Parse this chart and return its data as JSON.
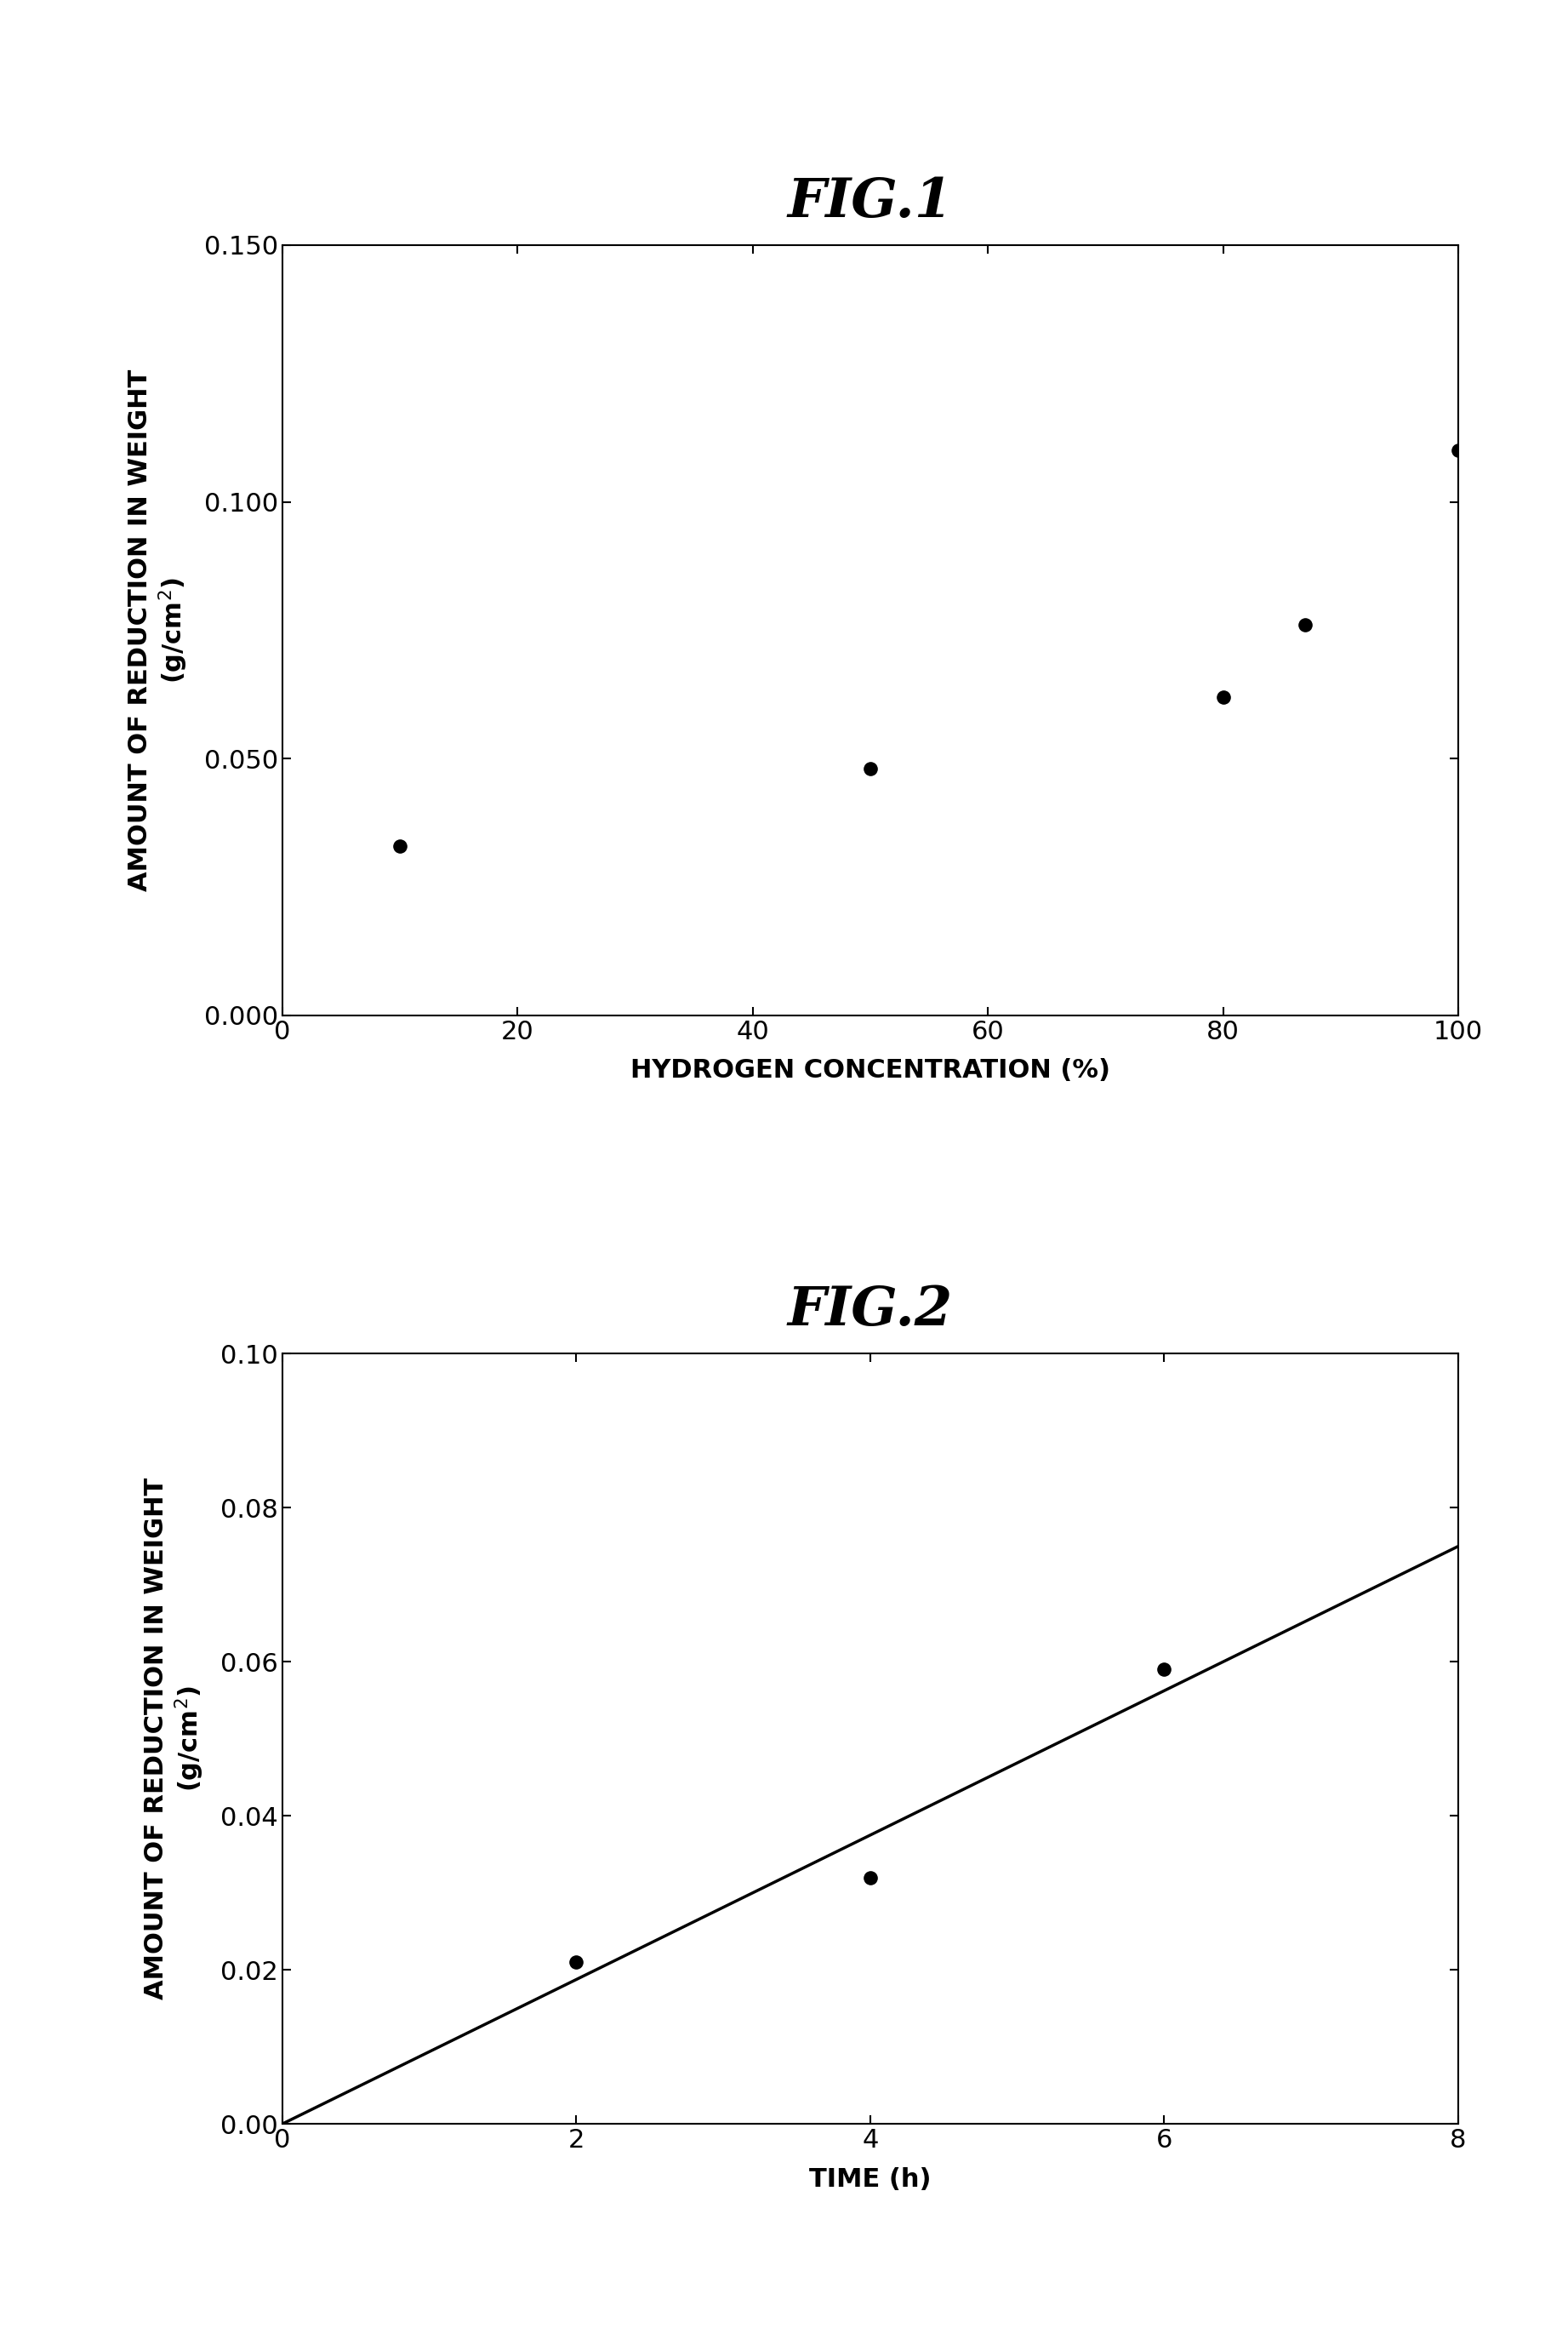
{
  "fig1": {
    "title": "FIG.1",
    "xlabel": "HYDROGEN CONCENTRATION (%)",
    "ylabel_line1": "AMOUNT OF REDUCTION IN WEIGHT",
    "ylabel_line2": "(g/cm²)",
    "x_data": [
      10,
      50,
      80,
      87,
      100
    ],
    "y_data": [
      0.033,
      0.048,
      0.062,
      0.076,
      0.11
    ],
    "xlim": [
      0,
      100
    ],
    "ylim": [
      0,
      0.15
    ],
    "xticks": [
      0,
      20,
      40,
      60,
      80,
      100
    ],
    "yticks": [
      0.0,
      0.05,
      0.1,
      0.15
    ]
  },
  "fig2": {
    "title": "FIG.2",
    "xlabel": "TIME (h)",
    "ylabel_line1": "AMOUNT OF REDUCTION IN WEIGHT",
    "ylabel_line2": "(g/cm²)",
    "x_data": [
      2,
      4,
      6
    ],
    "y_data": [
      0.021,
      0.032,
      0.059
    ],
    "line_x": [
      0,
      8
    ],
    "line_y": [
      0.0,
      0.075
    ],
    "xlim": [
      0,
      8
    ],
    "ylim": [
      0.0,
      0.1
    ],
    "xticks": [
      0,
      2,
      4,
      6,
      8
    ],
    "yticks": [
      0.0,
      0.02,
      0.04,
      0.06,
      0.08,
      0.1
    ]
  },
  "background_color": "#ffffff",
  "point_color": "#000000",
  "line_color": "#000000",
  "marker_size": 120,
  "linewidth": 2.5,
  "axis_linewidth": 1.5,
  "tick_labelsize": 22,
  "axis_labelsize": 22,
  "title_fontsize": 46
}
